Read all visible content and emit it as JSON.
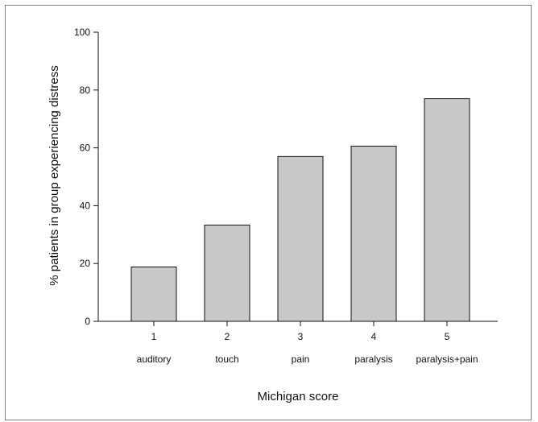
{
  "chart_data": {
    "type": "bar",
    "categories": [
      "1",
      "2",
      "3",
      "4",
      "5"
    ],
    "category_sublabels": [
      "auditory",
      "touch",
      "pain",
      "paralysis",
      "paralysis+pain"
    ],
    "values": [
      18.8,
      33.3,
      57.0,
      60.6,
      77.0
    ],
    "xlabel": "Michigan score",
    "ylabel": "% patients in group experiencing distress",
    "ylim": [
      0,
      100
    ],
    "yticks": [
      0,
      20,
      40,
      60,
      80,
      100
    ],
    "grid": false,
    "legend": "none",
    "bar_color": "#c8c8c8",
    "bar_edge_color": "#111111"
  }
}
